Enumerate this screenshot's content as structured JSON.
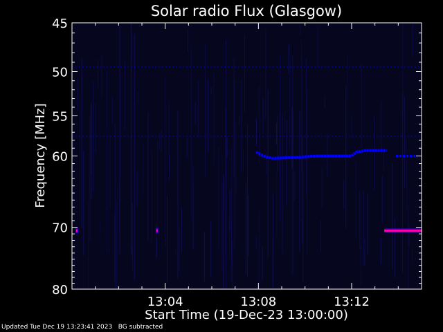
{
  "chart_data": {
    "type": "heatmap",
    "title": "Solar radio Flux (Glasgow)",
    "xlabel": "Start Time (19-Dec-23 13:00:00)",
    "ylabel": "Frequency [MHz]",
    "x_unit": "minutes after 13:00:00",
    "xlim": [
      0,
      15
    ],
    "ylim": [
      80,
      45
    ],
    "y_scale": "log",
    "x_ticks": [
      {
        "value": 4,
        "label": "13:04"
      },
      {
        "value": 8,
        "label": "13:08"
      },
      {
        "value": 12,
        "label": "13:12"
      }
    ],
    "y_ticks": [
      {
        "value": 45,
        "label": "45"
      },
      {
        "value": 50,
        "label": "50"
      },
      {
        "value": 55,
        "label": "55"
      },
      {
        "value": 60,
        "label": "60"
      },
      {
        "value": 70,
        "label": "70"
      },
      {
        "value": 80,
        "label": "80"
      }
    ],
    "colors": {
      "background": "#000000",
      "plot_background": "#06061f",
      "vertical_streaks": "#101060",
      "band_line": "#0000ff",
      "rfi_band": "#ff00aa",
      "axes": "#ffffff"
    },
    "features": {
      "emission_lane": [
        {
          "x": 7.9,
          "y": 59.5
        },
        {
          "x": 8.2,
          "y": 60.0
        },
        {
          "x": 8.6,
          "y": 60.3
        },
        {
          "x": 9.5,
          "y": 60.2
        },
        {
          "x": 10.5,
          "y": 60.0
        },
        {
          "x": 11.5,
          "y": 60.0
        },
        {
          "x": 12.0,
          "y": 60.0
        },
        {
          "x": 12.2,
          "y": 59.5
        },
        {
          "x": 12.6,
          "y": 59.3
        },
        {
          "x": 13.5,
          "y": 59.3
        }
      ],
      "tail_segment": [
        {
          "x": 13.9,
          "y": 60.0
        },
        {
          "x": 14.8,
          "y": 60.0
        }
      ],
      "faint_lanes_mhz": [
        49.5,
        57.5
      ],
      "rfi_band_mhz": 70.5,
      "rfi_band_x": [
        13.4,
        15.0
      ],
      "rfi_spots_x": [
        0.0,
        3.5
      ]
    }
  },
  "footer": {
    "text": "Updated Tue Dec 19 13:23:41 2023   BG subtracted"
  }
}
